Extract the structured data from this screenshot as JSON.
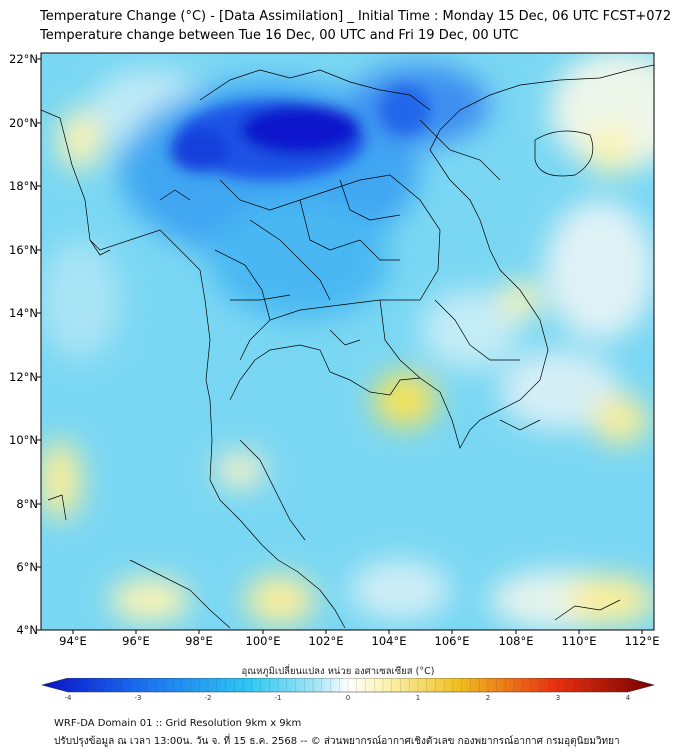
{
  "title": {
    "line1": "Temperature Change (°C) - [Data Assimilation] _ Initial Time : Monday 15 Dec, 06 UTC FCST+072",
    "line2": "Temperature change between Tue 16 Dec, 00 UTC and Fri 19 Dec, 00 UTC"
  },
  "axes": {
    "lat_labels": [
      "22°N",
      "20°N",
      "18°N",
      "16°N",
      "14°N",
      "12°N",
      "10°N",
      "8°N",
      "6°N",
      "4°N"
    ],
    "lon_labels": [
      "94°E",
      "96°E",
      "98°E",
      "100°E",
      "102°E",
      "104°E",
      "106°E",
      "108°E",
      "110°E",
      "112°E"
    ],
    "lat_range": [
      4,
      22.3
    ],
    "lon_range": [
      93,
      112.4
    ]
  },
  "colorbar": {
    "title": "อุณหภูมิเปลี่ยนแปลง หน่วย องศาเซลเซียส (°C)",
    "ticks": [
      "-4",
      "-3",
      "-2",
      "-1",
      "0",
      "1",
      "2",
      "3",
      "4"
    ],
    "min": -4,
    "max": 4,
    "colors": {
      "strong_cold": "#0a10c8",
      "cold": "#1a6ef0",
      "cool": "#2fc8f2",
      "slight_cool": "#a6e6f6",
      "neutral": "#ffffff",
      "slight_warm": "#fbf4b4",
      "warm": "#f0c020",
      "hot": "#e83010",
      "strong_hot": "#7a0000"
    }
  },
  "footer": {
    "line1": "WRF-DA Domain 01 :: Grid Resolution 9km x 9km",
    "line2": "ปรับปรุงข้อมูล ณ เวลา 13:00น. วัน จ. ที่ 15 ธ.ค. 2568 -- © ส่วนพยากรณ์อากาศเชิงตัวเลข กองพยากรณ์อากาศ กรมอุตุนิยมวิทยา"
  }
}
